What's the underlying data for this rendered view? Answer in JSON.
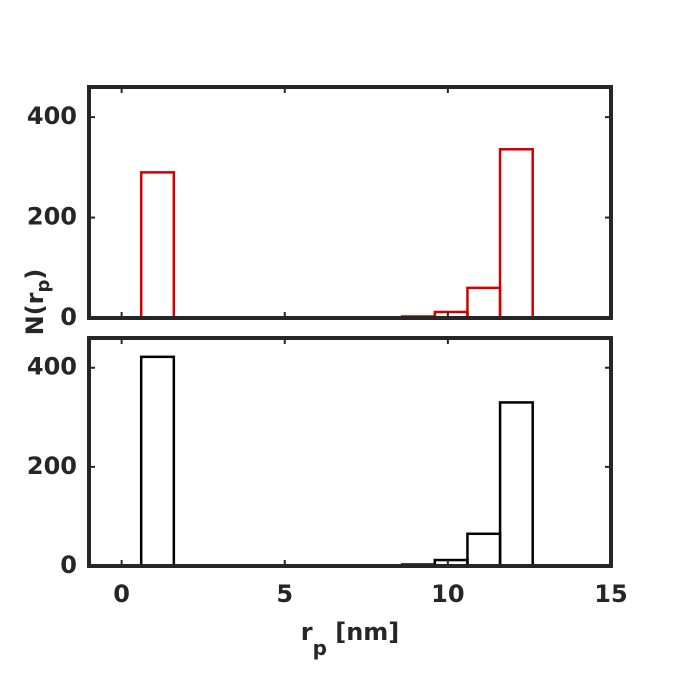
{
  "chart_data": [
    {
      "type": "histogram",
      "color": "#d00000",
      "bins": [
        0.6,
        1.6,
        2.6,
        3.6,
        4.6,
        5.6,
        6.6,
        7.6,
        8.6,
        9.6,
        10.6,
        11.6,
        12.6
      ],
      "values": [
        290,
        0,
        0,
        0,
        0,
        0,
        0,
        0,
        3,
        12,
        60,
        336
      ],
      "xlim": [
        -1,
        15
      ],
      "xticks": [
        0,
        5,
        10,
        15
      ],
      "ylim": [
        0,
        460
      ],
      "yticks": [
        0,
        200,
        400
      ],
      "ylabel": [
        "N(r",
        "p",
        ")"
      ]
    },
    {
      "type": "histogram",
      "color": "#000000",
      "bins": [
        0.6,
        1.6,
        2.6,
        3.6,
        4.6,
        5.6,
        6.6,
        7.6,
        8.6,
        9.6,
        10.6,
        11.6,
        12.6
      ],
      "values": [
        422,
        0,
        0,
        0,
        0,
        0,
        0,
        0,
        3,
        12,
        65,
        330
      ],
      "xlim": [
        -1,
        15
      ],
      "xticks": [
        0,
        5,
        10,
        15
      ],
      "ylim": [
        0,
        460
      ],
      "yticks": [
        0,
        200,
        400
      ],
      "xlabel": [
        "r",
        "p",
        " [nm]"
      ]
    }
  ]
}
